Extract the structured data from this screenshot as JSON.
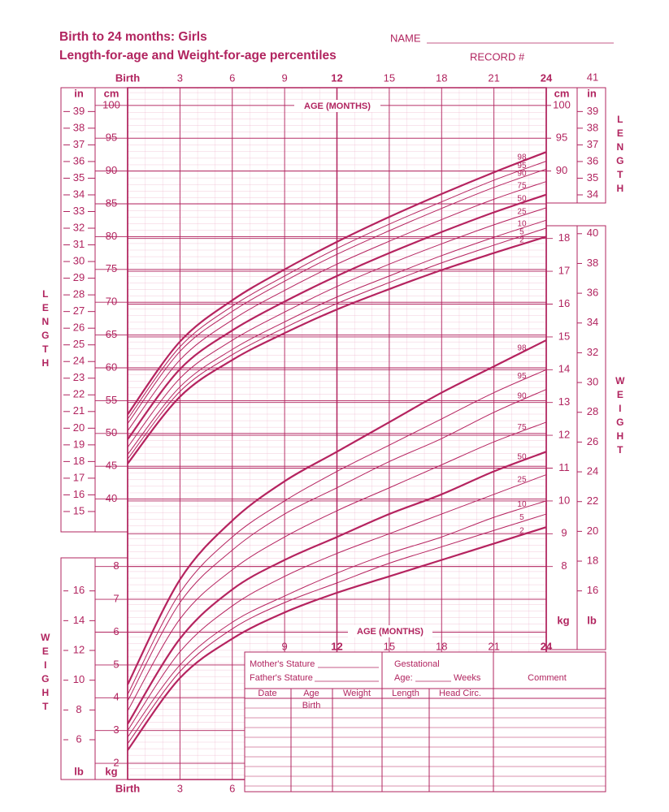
{
  "header": {
    "title_line1": "Birth to 24 months: Girls",
    "title_line2": "Length-for-age and Weight-for-age percentiles",
    "name_label": "NAME",
    "record_label": "RECORD #"
  },
  "chart_data": [
    {
      "type": "line",
      "title": "LENGTH",
      "x_label": "AGE (MONTHS)",
      "y_unit": "cm",
      "y2_unit": "in",
      "x": [
        0,
        3,
        6,
        9,
        12,
        15,
        18,
        21,
        24
      ],
      "xlim": [
        0,
        24
      ],
      "xticks": [
        {
          "value": 0,
          "label": "Birth"
        },
        3,
        6,
        9,
        12,
        15,
        18,
        21,
        24
      ],
      "ylim": [
        35,
        102.7
      ],
      "yticks": [
        40,
        45,
        50,
        55,
        60,
        65,
        70,
        75,
        80,
        85,
        90,
        95,
        100
      ],
      "right_yticks": [
        90,
        95,
        100
      ],
      "y2lim": [
        13.78,
        40.43
      ],
      "y2ticks": [
        15,
        16,
        17,
        18,
        19,
        20,
        21,
        22,
        23,
        24,
        25,
        26,
        27,
        28,
        29,
        30,
        31,
        32,
        33,
        34,
        35,
        36,
        37,
        38,
        39
      ],
      "right_y2ticks": [
        34,
        35,
        36,
        37,
        38,
        39,
        41
      ],
      "series": [
        {
          "name": "98",
          "color": "#b5235f",
          "width": 2.2,
          "values": [
            52.9,
            64.0,
            70.3,
            75.0,
            79.2,
            83.0,
            86.5,
            89.8,
            92.9
          ]
        },
        {
          "name": "95",
          "color": "#b5235f",
          "width": 1,
          "values": [
            52.2,
            63.2,
            69.4,
            74.0,
            78.2,
            81.9,
            85.3,
            88.6,
            91.5
          ]
        },
        {
          "name": "90",
          "color": "#b5235f",
          "width": 1,
          "values": [
            51.5,
            62.5,
            68.6,
            73.2,
            77.3,
            80.9,
            84.3,
            87.5,
            90.3
          ]
        },
        {
          "name": "75",
          "color": "#b5235f",
          "width": 1,
          "values": [
            50.4,
            61.2,
            67.3,
            71.8,
            75.8,
            79.3,
            82.6,
            85.7,
            88.4
          ]
        },
        {
          "name": "50",
          "color": "#b5235f",
          "width": 2.2,
          "values": [
            49.1,
            59.8,
            65.7,
            70.1,
            74.0,
            77.5,
            80.7,
            83.7,
            86.4
          ]
        },
        {
          "name": "25",
          "color": "#b5235f",
          "width": 1,
          "values": [
            47.9,
            58.4,
            64.2,
            68.5,
            72.4,
            75.8,
            78.9,
            81.8,
            84.4
          ]
        },
        {
          "name": "10",
          "color": "#b5235f",
          "width": 1,
          "values": [
            46.8,
            57.1,
            62.8,
            67.0,
            70.8,
            74.0,
            77.1,
            79.9,
            82.5
          ]
        },
        {
          "name": "5",
          "color": "#b5235f",
          "width": 1,
          "values": [
            46.1,
            56.4,
            62.0,
            66.1,
            69.8,
            73.0,
            76.0,
            78.7,
            81.3
          ]
        },
        {
          "name": "2",
          "color": "#b5235f",
          "width": 2.2,
          "values": [
            45.4,
            55.6,
            61.2,
            65.3,
            68.9,
            72.0,
            74.9,
            77.5,
            80.0
          ]
        }
      ]
    },
    {
      "type": "line",
      "title": "WEIGHT",
      "x_label": "AGE (MONTHS)",
      "y_unit": "kg",
      "y2_unit": "lb",
      "x": [
        0,
        3,
        6,
        9,
        12,
        15,
        18,
        21,
        24
      ],
      "xlim": [
        0,
        24
      ],
      "xticks": [
        {
          "value": 0,
          "label": "Birth"
        },
        3,
        6,
        9,
        12,
        15,
        18,
        21,
        24
      ],
      "ylim": [
        1.5,
        18.5
      ],
      "yticks": [
        2,
        3,
        4,
        5,
        6,
        7,
        8
      ],
      "right_yticks": [
        8,
        9,
        10,
        11,
        12,
        13,
        14,
        15,
        16,
        17,
        18
      ],
      "y2lim": [
        3.31,
        40.78
      ],
      "y2ticks": [
        6,
        8,
        10,
        12,
        14,
        16
      ],
      "right_y2ticks": [
        16,
        18,
        20,
        22,
        24,
        26,
        28,
        30,
        32,
        34,
        36,
        38,
        40
      ],
      "series": [
        {
          "name": "98",
          "color": "#b5235f",
          "width": 2.2,
          "values": [
            4.4,
            7.6,
            9.4,
            10.6,
            11.5,
            12.4,
            13.3,
            14.1,
            14.9
          ]
        },
        {
          "name": "95",
          "color": "#b5235f",
          "width": 1,
          "values": [
            4.1,
            7.2,
            8.9,
            10.0,
            10.9,
            11.7,
            12.5,
            13.3,
            14.0
          ]
        },
        {
          "name": "90",
          "color": "#b5235f",
          "width": 1,
          "values": [
            3.9,
            6.9,
            8.5,
            9.6,
            10.4,
            11.2,
            11.9,
            12.7,
            13.4
          ]
        },
        {
          "name": "75",
          "color": "#b5235f",
          "width": 1,
          "values": [
            3.6,
            6.4,
            7.9,
            8.9,
            9.7,
            10.4,
            11.1,
            11.8,
            12.4
          ]
        },
        {
          "name": "50",
          "color": "#b5235f",
          "width": 2.2,
          "values": [
            3.2,
            5.8,
            7.3,
            8.2,
            8.9,
            9.6,
            10.2,
            10.9,
            11.5
          ]
        },
        {
          "name": "25",
          "color": "#b5235f",
          "width": 1,
          "values": [
            3.0,
            5.4,
            6.8,
            7.7,
            8.4,
            9.0,
            9.6,
            10.2,
            10.8
          ]
        },
        {
          "name": "10",
          "color": "#b5235f",
          "width": 1,
          "values": [
            2.8,
            5.0,
            6.3,
            7.1,
            7.8,
            8.4,
            8.9,
            9.5,
            10.0
          ]
        },
        {
          "name": "5",
          "color": "#b5235f",
          "width": 1,
          "values": [
            2.6,
            4.8,
            6.1,
            6.9,
            7.5,
            8.1,
            8.6,
            9.1,
            9.6
          ]
        },
        {
          "name": "2",
          "color": "#b5235f",
          "width": 2.2,
          "values": [
            2.4,
            4.6,
            5.8,
            6.6,
            7.2,
            7.7,
            8.2,
            8.7,
            9.2
          ]
        }
      ]
    }
  ],
  "record_table": {
    "mother_stature": "Mother's Stature",
    "father_stature": "Father's Stature",
    "gestational": "Gestational",
    "age": "Age:",
    "weeks": "Weeks",
    "comment": "Comment",
    "columns": [
      "Date",
      "Age",
      "Weight",
      "Length",
      "Head  Circ."
    ],
    "first_row_age": "Birth"
  }
}
